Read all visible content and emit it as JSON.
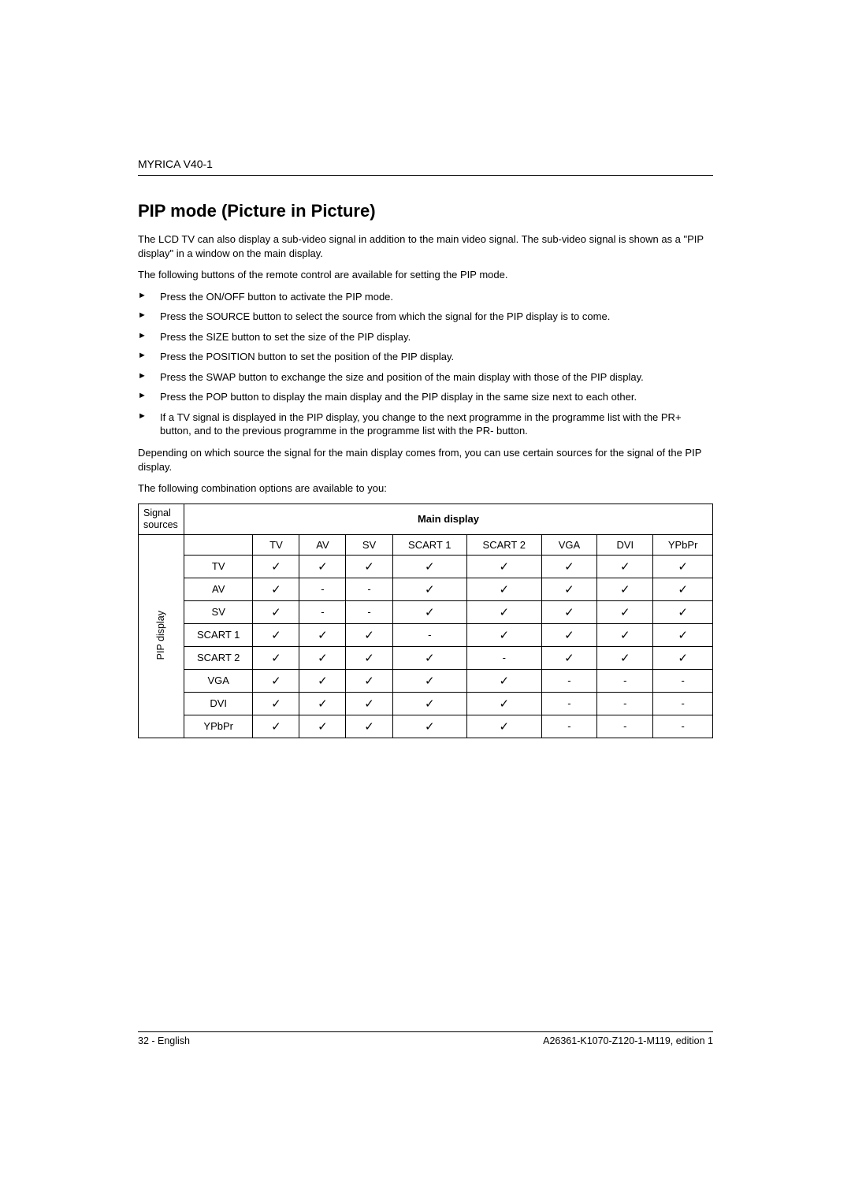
{
  "header": {
    "model": "MYRICA V40-1"
  },
  "section": {
    "title": "PIP mode (Picture in Picture)",
    "intro1": "The LCD TV can also display a sub-video signal in addition to the main video signal. The sub-video signal is shown as a \"PIP display\" in a window on the main display.",
    "intro2": "The following buttons of the remote control are available for setting the PIP mode.",
    "bullets": [
      "Press the ON/OFF button to activate the PIP mode.",
      "Press the SOURCE button to select the source from which the signal for the PIP display is to come.",
      "Press the SIZE button to set the size of the PIP display.",
      "Press the POSITION button to set the position of the PIP display.",
      "Press the SWAP button to exchange the size and position of the main display with those of the PIP display.",
      "Press the POP button to display the main display and the PIP display in the same size next to each other.",
      "If a TV signal is displayed in the PIP display, you change to the next programme in the programme list with the PR+ button, and to the previous programme in the programme list with the PR- button."
    ],
    "outro1": "Depending on which source the signal for the main display comes from, you can use certain sources for the signal of the PIP display.",
    "outro2": "The following combination options are available to you:"
  },
  "table": {
    "corner_label": "Signal sources",
    "main_display_label": "Main display",
    "pip_display_label": "PIP display",
    "columns": [
      "TV",
      "AV",
      "SV",
      "SCART 1",
      "SCART 2",
      "VGA",
      "DVI",
      "YPbPr"
    ],
    "rows": [
      {
        "label": "TV",
        "cells": [
          "✓",
          "✓",
          "✓",
          "✓",
          "✓",
          "✓",
          "✓",
          "✓"
        ]
      },
      {
        "label": "AV",
        "cells": [
          "✓",
          "-",
          "-",
          "✓",
          "✓",
          "✓",
          "✓",
          "✓"
        ]
      },
      {
        "label": "SV",
        "cells": [
          "✓",
          "-",
          "-",
          "✓",
          "✓",
          "✓",
          "✓",
          "✓"
        ]
      },
      {
        "label": "SCART 1",
        "cells": [
          "✓",
          "✓",
          "✓",
          "-",
          "✓",
          "✓",
          "✓",
          "✓"
        ]
      },
      {
        "label": "SCART 2",
        "cells": [
          "✓",
          "✓",
          "✓",
          "✓",
          "-",
          "✓",
          "✓",
          "✓"
        ]
      },
      {
        "label": "VGA",
        "cells": [
          "✓",
          "✓",
          "✓",
          "✓",
          "✓",
          "-",
          "-",
          "-"
        ]
      },
      {
        "label": "DVI",
        "cells": [
          "✓",
          "✓",
          "✓",
          "✓",
          "✓",
          "-",
          "-",
          "-"
        ]
      },
      {
        "label": "YPbPr",
        "cells": [
          "✓",
          "✓",
          "✓",
          "✓",
          "✓",
          "-",
          "-",
          "-"
        ]
      }
    ]
  },
  "footer": {
    "left": "32 - English",
    "right": "A26361-K1070-Z120-1-M119, edition 1"
  },
  "glyphs": {
    "check": "✓",
    "dash": "-"
  }
}
